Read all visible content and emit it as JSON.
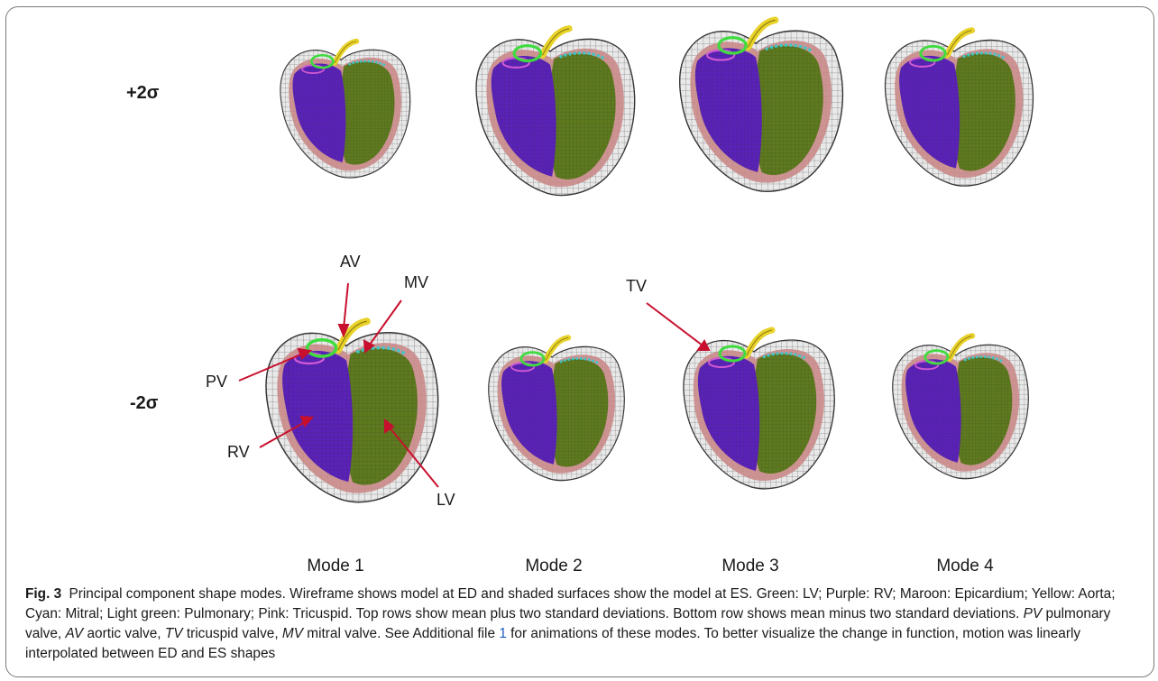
{
  "figure": {
    "row_labels": {
      "top": "+2σ",
      "bottom": "-2σ"
    },
    "annotations": [
      "AV",
      "MV",
      "TV",
      "PV",
      "RV",
      "LV"
    ],
    "mode_labels": [
      "Mode 1",
      "Mode 2",
      "Mode 3",
      "Mode 4"
    ]
  },
  "caption": {
    "fig_number": "Fig. 3",
    "part1": "Principal component shape modes. Wireframe shows model at ED and shaded surfaces show the model at ES. Green: LV; Purple: RV; Maroon: Epicardium; Yellow: Aorta; Cyan: Mitral; Light green: Pulmonary; Pink: Tricuspid. Top rows show mean plus two standard deviations. Bottom row shows mean minus two standard deviations.",
    "pv_abbr": "PV",
    "pv_text": "pulmonary valve,",
    "av_abbr": "AV",
    "av_text": "aortic valve,",
    "tv_abbr": "TV",
    "tv_text": "tricuspid valve,",
    "mv_abbr": "MV",
    "mv_text": "mitral valve. See Additional file",
    "file_link": "1",
    "part2": "for animations of these modes. To better visualize the change in function, motion was linearly interpolated between ED and ES shapes"
  },
  "colors": {
    "lv": "#5e7a1e",
    "rv": "#5a22b8",
    "epicardium": "#c98a88",
    "aorta": "#e8d22a",
    "mitral": "#3fc6c6",
    "pulmonary": "#3edc3e",
    "tricuspid": "#d25ad2",
    "arrow": "#c8102e"
  }
}
